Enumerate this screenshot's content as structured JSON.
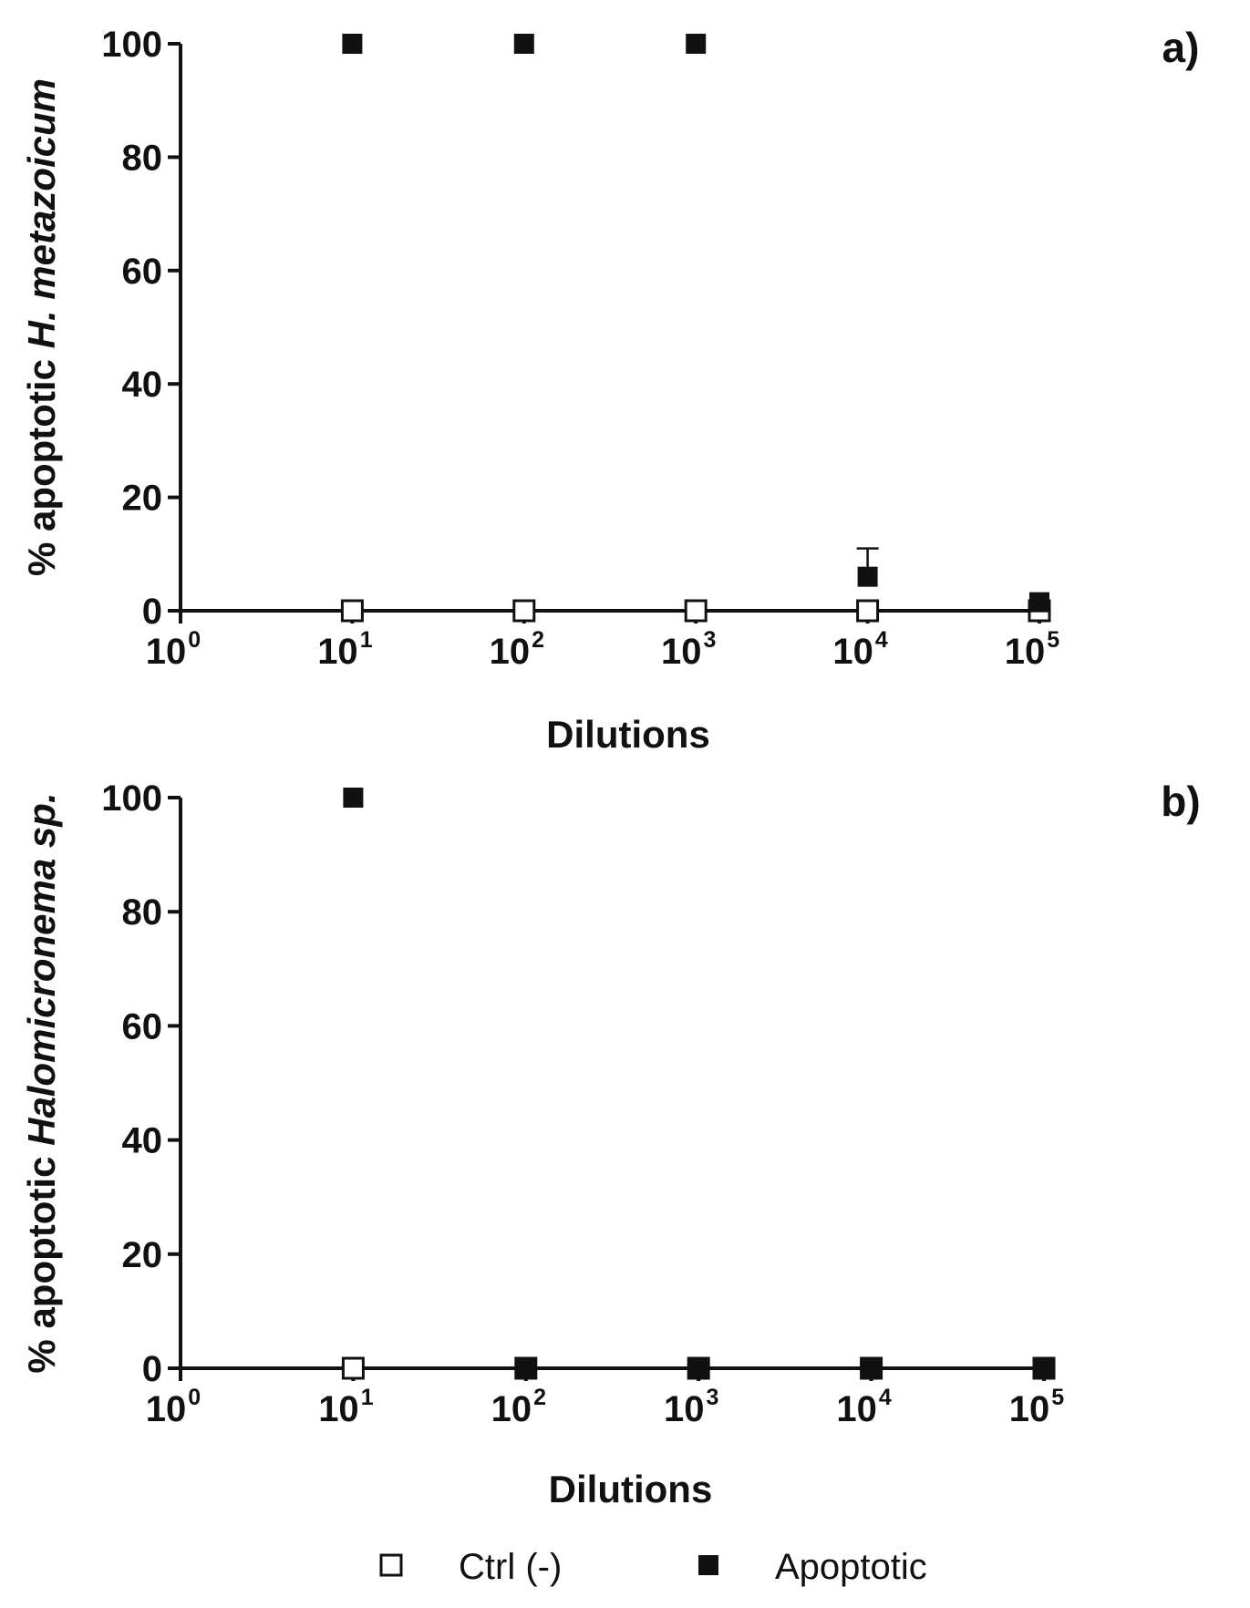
{
  "chart_data": [
    {
      "type": "scatter",
      "panel_label": "a)",
      "ylabel_prefix": "% apoptotic ",
      "ylabel_italic": "H. metazoicum",
      "xlabel": "Dilutions",
      "x_scale": "log",
      "xlim": [
        1,
        100000
      ],
      "ylim": [
        0,
        100
      ],
      "x_ticks": [
        {
          "value": 1,
          "base": "10",
          "exp": "0"
        },
        {
          "value": 10,
          "base": "10",
          "exp": "1"
        },
        {
          "value": 100,
          "base": "10",
          "exp": "2"
        },
        {
          "value": 1000,
          "base": "10",
          "exp": "3"
        },
        {
          "value": 10000,
          "base": "10",
          "exp": "4"
        },
        {
          "value": 100000,
          "base": "10",
          "exp": "5"
        }
      ],
      "y_ticks": [
        0,
        20,
        40,
        60,
        80,
        100
      ],
      "grid": false,
      "series": [
        {
          "name": "Ctrl (-)",
          "marker": "open-square",
          "x": [
            10,
            100,
            1000,
            10000,
            100000
          ],
          "y": [
            0,
            0,
            0,
            0,
            0
          ],
          "err": [
            0,
            0,
            0,
            0,
            0
          ]
        },
        {
          "name": "Apoptotic",
          "marker": "filled-square",
          "x": [
            10,
            100,
            1000,
            10000,
            100000
          ],
          "y": [
            100,
            100,
            100,
            6,
            1.5
          ],
          "err": [
            0,
            0,
            0,
            5,
            0
          ]
        }
      ]
    },
    {
      "type": "scatter",
      "panel_label": "b)",
      "ylabel_prefix": "% apoptotic ",
      "ylabel_italic": "Halomicronema sp.",
      "xlabel": "Dilutions",
      "x_scale": "log",
      "xlim": [
        1,
        100000
      ],
      "ylim": [
        0,
        100
      ],
      "x_ticks": [
        {
          "value": 1,
          "base": "10",
          "exp": "0"
        },
        {
          "value": 10,
          "base": "10",
          "exp": "1"
        },
        {
          "value": 100,
          "base": "10",
          "exp": "2"
        },
        {
          "value": 1000,
          "base": "10",
          "exp": "3"
        },
        {
          "value": 10000,
          "base": "10",
          "exp": "4"
        },
        {
          "value": 100000,
          "base": "10",
          "exp": "5"
        }
      ],
      "y_ticks": [
        0,
        20,
        40,
        60,
        80,
        100
      ],
      "grid": false,
      "series": [
        {
          "name": "Ctrl (-)",
          "marker": "open-square",
          "x": [
            10,
            100,
            1000,
            10000,
            100000
          ],
          "y": [
            0,
            0,
            0,
            0,
            0
          ],
          "err": [
            0,
            0,
            0,
            0,
            0
          ]
        },
        {
          "name": "Apoptotic",
          "marker": "filled-square",
          "x": [
            10,
            100,
            1000,
            10000,
            100000
          ],
          "y": [
            100,
            0,
            0,
            0,
            0
          ],
          "err": [
            0,
            0,
            0,
            0,
            0
          ]
        }
      ]
    }
  ],
  "legend": {
    "placement": "bottom-center",
    "entries": [
      {
        "label": "Ctrl (-)",
        "marker": "open-square"
      },
      {
        "label": "Apoptotic",
        "marker": "filled-square"
      }
    ]
  },
  "colors": {
    "ink": "#111111",
    "background": "#ffffff"
  }
}
